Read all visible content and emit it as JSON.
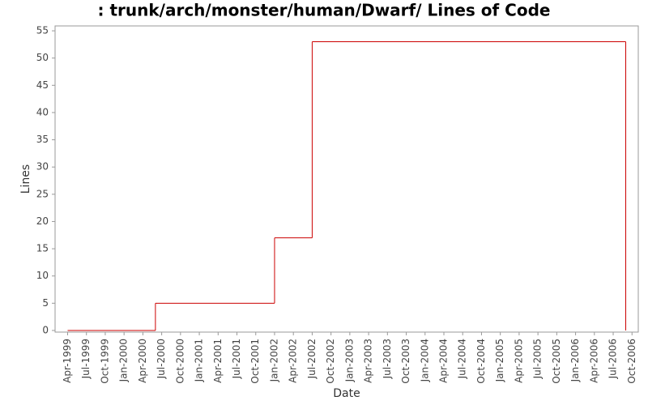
{
  "chart_data": {
    "type": "step",
    "title": ": trunk/arch/monster/human/Dwarf/ Lines of Code",
    "x_label": "Date",
    "y_label": "Lines",
    "x": [
      "1999-04",
      "2000-06",
      "2002-01",
      "2002-07",
      "2006-09"
    ],
    "series": [
      {
        "name": "Lines",
        "color": "#cc0000",
        "values": [
          0,
          5,
          17,
          53,
          0
        ]
      }
    ],
    "xlim": [
      "1999-02",
      "2006-11"
    ],
    "xticks": [
      {
        "value": "1999-04",
        "label": "Apr-1999"
      },
      {
        "value": "1999-07",
        "label": "Jul-1999"
      },
      {
        "value": "1999-10",
        "label": "Oct-1999"
      },
      {
        "value": "2000-01",
        "label": "Jan-2000"
      },
      {
        "value": "2000-04",
        "label": "Apr-2000"
      },
      {
        "value": "2000-07",
        "label": "Jul-2000"
      },
      {
        "value": "2000-10",
        "label": "Oct-2000"
      },
      {
        "value": "2001-01",
        "label": "Jan-2001"
      },
      {
        "value": "2001-04",
        "label": "Apr-2001"
      },
      {
        "value": "2001-07",
        "label": "Jul-2001"
      },
      {
        "value": "2001-10",
        "label": "Oct-2001"
      },
      {
        "value": "2002-01",
        "label": "Jan-2002"
      },
      {
        "value": "2002-04",
        "label": "Apr-2002"
      },
      {
        "value": "2002-07",
        "label": "Jul-2002"
      },
      {
        "value": "2002-10",
        "label": "Oct-2002"
      },
      {
        "value": "2003-01",
        "label": "Jan-2003"
      },
      {
        "value": "2003-04",
        "label": "Apr-2003"
      },
      {
        "value": "2003-07",
        "label": "Jul-2003"
      },
      {
        "value": "2003-10",
        "label": "Oct-2003"
      },
      {
        "value": "2004-01",
        "label": "Jan-2004"
      },
      {
        "value": "2004-04",
        "label": "Apr-2004"
      },
      {
        "value": "2004-07",
        "label": "Jul-2004"
      },
      {
        "value": "2004-10",
        "label": "Oct-2004"
      },
      {
        "value": "2005-01",
        "label": "Jan-2005"
      },
      {
        "value": "2005-04",
        "label": "Apr-2005"
      },
      {
        "value": "2005-07",
        "label": "Jul-2005"
      },
      {
        "value": "2005-10",
        "label": "Oct-2005"
      },
      {
        "value": "2006-01",
        "label": "Jan-2006"
      },
      {
        "value": "2006-04",
        "label": "Apr-2006"
      },
      {
        "value": "2006-07",
        "label": "Jul-2006"
      },
      {
        "value": "2006-10",
        "label": "Oct-2006"
      }
    ],
    "ylim": [
      -0.3,
      55.9
    ],
    "yticks": [
      0,
      5,
      10,
      15,
      20,
      25,
      30,
      35,
      40,
      45,
      50,
      55
    ],
    "grid": false
  }
}
